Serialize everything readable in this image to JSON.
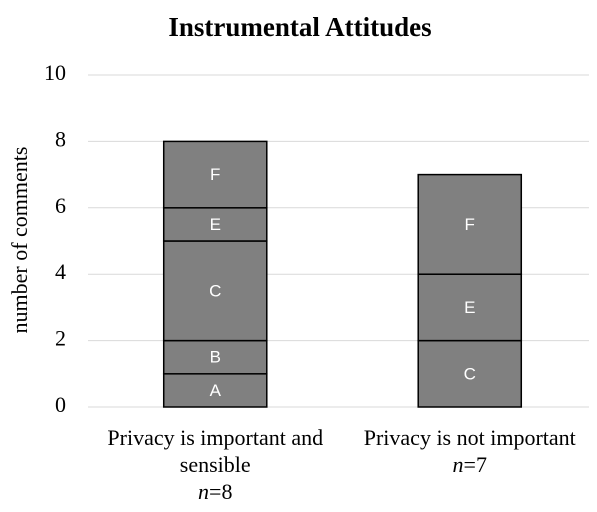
{
  "chart_data": {
    "type": "stacked_bar",
    "title": "Instrumental Attitudes",
    "y_label": "number of comments",
    "categories": [
      "Privacy is important and sensible",
      "Privacy is not important"
    ],
    "category_notes": [
      "n=8",
      "n=7"
    ],
    "series": [
      {
        "name": "A",
        "color": "#808080",
        "values": [
          1,
          null
        ]
      },
      {
        "name": "B",
        "color": "#808080",
        "values": [
          1,
          null
        ]
      },
      {
        "name": "C",
        "color": "#808080",
        "values": [
          3,
          2
        ]
      },
      {
        "name": "E",
        "color": "#808080",
        "values": [
          1,
          2
        ]
      },
      {
        "name": "F",
        "color": "#808080",
        "values": [
          2,
          3
        ]
      }
    ],
    "ylim": [
      0,
      10
    ],
    "yticks": [
      0,
      2,
      4,
      6,
      8,
      10
    ],
    "grid": true
  }
}
